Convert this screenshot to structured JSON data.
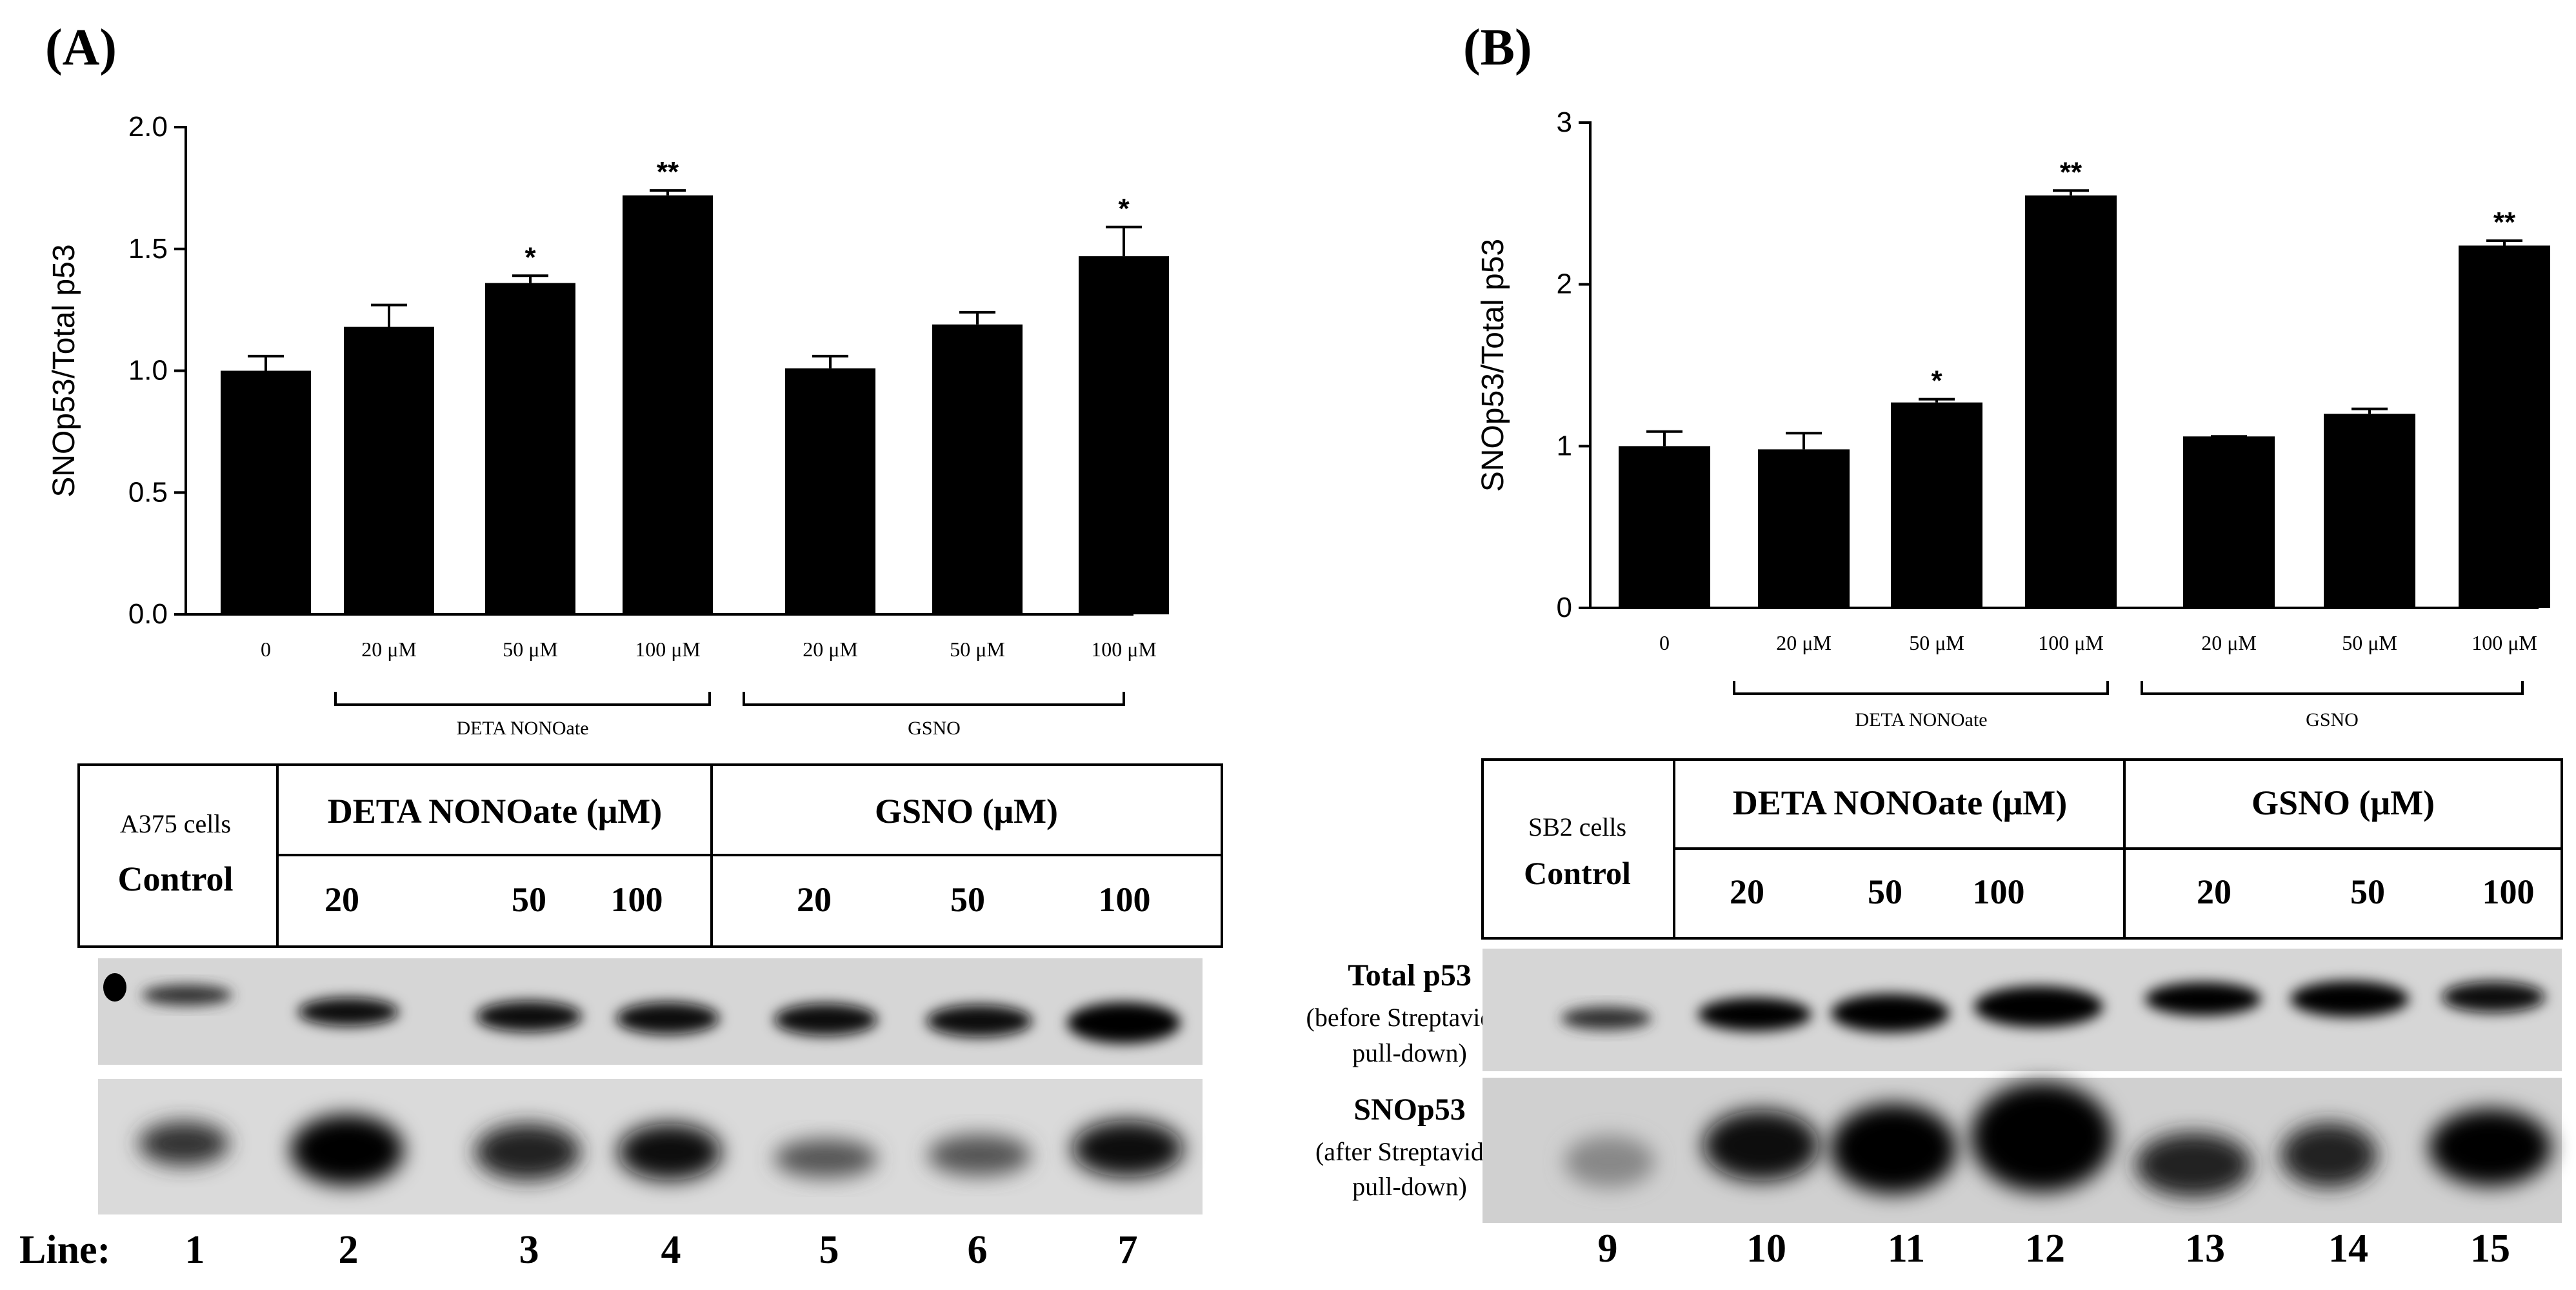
{
  "panels": [
    {
      "letter": "(A)",
      "cell_line": "A375 cells",
      "control_label": "Control",
      "deta_header": "DETA NONOate (μM)",
      "gsno_header": "GSNO (μM)",
      "deta_conc": [
        "20",
        "50",
        "100"
      ],
      "gsno_conc": [
        "20",
        "50",
        "100"
      ],
      "lane_numbers": [
        "1",
        "2",
        "3",
        "4",
        "5",
        "6",
        "7"
      ],
      "bracket_labels": [
        "DETA NONOate",
        "GSNO"
      ]
    },
    {
      "letter": "(B)",
      "cell_line": "SB2 cells",
      "control_label": "Control",
      "deta_header": "DETA NONOate (μM)",
      "gsno_header": "GSNO (μM)",
      "deta_conc": [
        "20",
        "50",
        "100"
      ],
      "gsno_conc": [
        "20",
        "50",
        "100"
      ],
      "lane_numbers": [
        "9",
        "10",
        "11",
        "12",
        "13",
        "14",
        "15"
      ],
      "bracket_labels": [
        "DETA NONOate",
        "GSNO"
      ]
    }
  ],
  "blot_labels": {
    "total_title": "Total p53",
    "total_sub1": "(before Streptavidin",
    "total_sub2": "pull-down)",
    "sno_title": "SNOp53",
    "sno_sub1": "(after Streptavidin",
    "sno_sub2": "pull-down)"
  },
  "line_label": "Line:",
  "chart_data": [
    {
      "type": "bar",
      "ylabel": "SNOp53/Total p53",
      "categories": [
        "0",
        "20 μM",
        "50 μM",
        "100 μM",
        "20 μM",
        "50 μM",
        "100 μM"
      ],
      "values": [
        1.0,
        1.18,
        1.36,
        1.72,
        1.01,
        1.19,
        1.47
      ],
      "errors": [
        0.06,
        0.09,
        0.03,
        0.02,
        0.05,
        0.05,
        0.12
      ],
      "significance": [
        "",
        "",
        "*",
        "**",
        "",
        "",
        "*"
      ],
      "ylim": [
        0,
        2.0
      ],
      "yticks": [
        "0.0",
        "0.5",
        "1.0",
        "1.5",
        "2.0"
      ],
      "bar_color": "#000000"
    },
    {
      "type": "bar",
      "ylabel": "SNOp53/Total p53",
      "categories": [
        "0",
        "20 μM",
        "50 μM",
        "100 μM",
        "20 μM",
        "50 μM",
        "100 μM"
      ],
      "values": [
        1.0,
        0.98,
        1.27,
        2.55,
        1.06,
        1.2,
        2.24
      ],
      "errors": [
        0.09,
        0.1,
        0.02,
        0.03,
        0.0,
        0.03,
        0.03
      ],
      "significance": [
        "",
        "",
        "*",
        "**",
        "",
        "",
        "**"
      ],
      "ylim": [
        0,
        3
      ],
      "yticks": [
        "0",
        "1",
        "2",
        "3"
      ],
      "bar_color": "#000000"
    }
  ]
}
